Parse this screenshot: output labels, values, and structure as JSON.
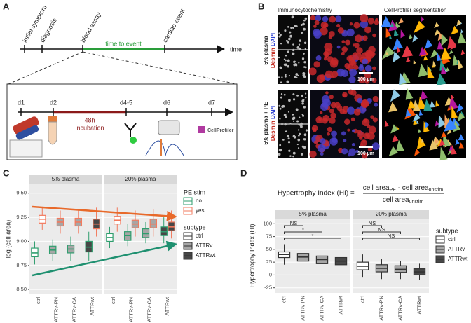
{
  "panel_a": {
    "label": "A",
    "timeline": {
      "events": [
        "initial symptom",
        "diagnosis",
        "blood assay",
        "cardiac event"
      ],
      "interval": "time to event",
      "axis": "time"
    },
    "protocol": {
      "days": [
        "d1",
        "d2",
        "d4-5",
        "d6",
        "d7"
      ],
      "incubation": [
        "48h",
        "incubation"
      ],
      "software": "CellProfiler"
    }
  },
  "panel_b": {
    "label": "B",
    "columns": [
      "Immunocytochemistry",
      "CellProfiler segmentation"
    ],
    "rows": [
      {
        "condition": "5% plasma",
        "stains": [
          "Desmin",
          "DAPI"
        ],
        "scale": "100 µm"
      },
      {
        "condition": "5% plasma + PE",
        "stains": [
          "Desmin",
          "DAPI"
        ],
        "scale": "100 µm"
      }
    ]
  },
  "panel_c": {
    "label": "C",
    "chart": {
      "type": "boxplot",
      "y_label": "log (cell area)",
      "ylim": [
        8.45,
        9.6
      ],
      "yticks": [
        {
          "value": 8.5,
          "label": "8.50"
        },
        {
          "value": 8.75,
          "label": "8.75"
        },
        {
          "value": 9,
          "label": "9.00"
        },
        {
          "value": 9.25,
          "label": "9.25"
        },
        {
          "value": 9.5,
          "label": "9.50"
        }
      ],
      "categories": [
        "ctrl",
        "ATTRv-PN",
        "ATTRv-CA",
        "ATTRwt"
      ],
      "category_fills": [
        "#ffffff",
        "#a6a6a6",
        "#a6a6a6",
        "#474747"
      ],
      "series_title": "PE stim",
      "series": [
        {
          "name": "no",
          "color": "#2f9e6e"
        },
        {
          "name": "yes",
          "color": "#f27a5e"
        }
      ],
      "subtype_title": "subtype",
      "subtypes": [
        {
          "name": "ctrl",
          "fill": "#ffffff"
        },
        {
          "name": "ATTRv",
          "fill": "#a6a6a6"
        },
        {
          "name": "ATTRwt",
          "fill": "#474747"
        }
      ],
      "facets": [
        {
          "title": "5% plasma",
          "boxes": [
            [
              [
                8.76,
                8.84,
                8.88,
                8.93,
                9.0
              ],
              [
                8.8,
                8.87,
                8.91,
                8.95,
                9.02
              ],
              [
                8.8,
                8.88,
                8.92,
                8.96,
                9.05
              ],
              [
                8.8,
                8.89,
                8.94,
                9.0,
                9.1
              ]
            ],
            [
              [
                9.12,
                9.19,
                9.23,
                9.27,
                9.36
              ],
              [
                9.08,
                9.16,
                9.2,
                9.24,
                9.32
              ],
              [
                9.08,
                9.16,
                9.2,
                9.24,
                9.33
              ],
              [
                9.05,
                9.13,
                9.18,
                9.23,
                9.35
              ]
            ]
          ]
        },
        {
          "title": "20% plasma",
          "boxes": [
            [
              [
                8.93,
                9.0,
                9.04,
                9.08,
                9.15
              ],
              [
                8.95,
                9.01,
                9.06,
                9.1,
                9.18
              ],
              [
                8.98,
                9.04,
                9.08,
                9.13,
                9.2
              ],
              [
                8.98,
                9.06,
                9.1,
                9.15,
                9.25
              ]
            ],
            [
              [
                9.1,
                9.18,
                9.22,
                9.26,
                9.35
              ],
              [
                9.05,
                9.14,
                9.18,
                9.22,
                9.32
              ],
              [
                9.05,
                9.14,
                9.18,
                9.23,
                9.33
              ],
              [
                9.03,
                9.11,
                9.15,
                9.2,
                9.32
              ]
            ]
          ]
        }
      ]
    }
  },
  "panel_d": {
    "label": "D",
    "formula": {
      "left": "Hypertrophy Index (HI) =",
      "numerator": [
        "cell area",
        "PE",
        " - cell area",
        "unstim"
      ],
      "denominator": [
        "cell area",
        "unstim"
      ]
    },
    "chart": {
      "type": "boxplot",
      "y_label": "Hypertrophy Index (HI)",
      "ylim": [
        -35,
        110
      ],
      "yticks": [
        -25,
        0,
        25,
        50,
        75,
        100
      ],
      "categories": [
        "ctrl",
        "ATTRv-PN",
        "ATTRv-CA",
        "ATTRwt"
      ],
      "category_fills": [
        "#ffffff",
        "#a6a6a6",
        "#a6a6a6",
        "#474747"
      ],
      "subtype_title": "subtype",
      "subtypes": [
        {
          "name": "ctrl",
          "fill": "#ffffff"
        },
        {
          "name": "ATTRv",
          "fill": "#a6a6a6"
        },
        {
          "name": "ATTRwt",
          "fill": "#474747"
        }
      ],
      "facets": [
        {
          "title": "5% plasma",
          "boxes": [
            [
              20,
              34,
              40,
              45,
              60
            ],
            [
              12,
              27,
              35,
              42,
              58
            ],
            [
              8,
              22,
              30,
              37,
              52
            ],
            [
              5,
              20,
              27,
              34,
              48
            ]
          ],
          "comparisons": [
            {
              "from": 0,
              "to": 1,
              "label": "NS"
            },
            {
              "from": 0,
              "to": 2,
              "label": "*"
            },
            {
              "from": 0,
              "to": 3,
              "label": "*"
            }
          ]
        },
        {
          "title": "20% plasma",
          "boxes": [
            [
              -5,
              10,
              17,
              25,
              40
            ],
            [
              -8,
              6,
              13,
              20,
              32
            ],
            [
              -8,
              5,
              11,
              18,
              28
            ],
            [
              -10,
              0,
              6,
              12,
              22
            ]
          ],
          "comparisons": [
            {
              "from": 0,
              "to": 1,
              "label": "NS"
            },
            {
              "from": 0,
              "to": 2,
              "label": "NS"
            },
            {
              "from": 0,
              "to": 3,
              "label": "NS"
            }
          ]
        }
      ]
    }
  }
}
